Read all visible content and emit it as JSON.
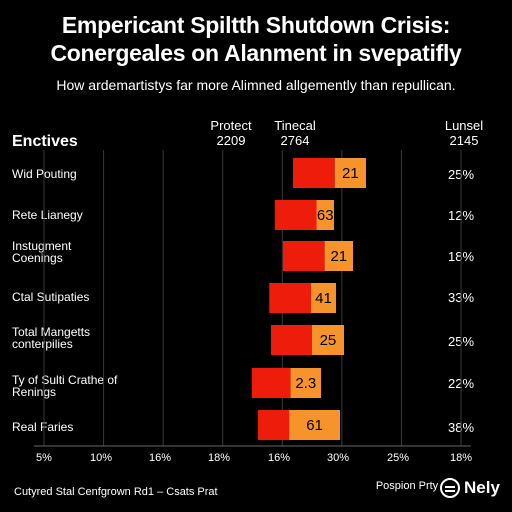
{
  "header": {
    "title_line1": "Empericant Spiltth Shutdown Crisis:",
    "title_line2": "Conergeales on Alanment in svepatifly",
    "subtitle": "How ardemartistys far more Alimned allgemently than repullican."
  },
  "columns": {
    "left_header": "Enctives",
    "col1_name": "Protect",
    "col1_value": "2209",
    "col2_name": "Tinecal",
    "col2_value": "2764",
    "col3_name": "Lunsel",
    "col3_value": "2145"
  },
  "colors": {
    "series1": "#ee1c0a",
    "series2": "#f7932b",
    "background": "#000000"
  },
  "chart_data": {
    "type": "bar",
    "orientation": "horizontal",
    "stacked": true,
    "categories": [
      "Wid Pouting",
      "Rete Lianegy",
      "Instugment Coenings",
      "Ctal Sutipaties",
      "Total Mangetts conterpilies",
      "Ty of Sulti Crathe of Renings",
      "Real Faries"
    ],
    "series": [
      {
        "values": [
          10,
          10,
          10,
          10,
          9.8,
          9.3,
          7.5
        ]
      },
      {
        "values": [
          7.5,
          4.2,
          6.8,
          6.0,
          7.7,
          7.3,
          12.2
        ]
      }
    ],
    "data_labels": [
      "21",
      "63",
      "21",
      "41",
      "25",
      "2.3",
      "61"
    ],
    "right_values": [
      "25%",
      "12%",
      "18%",
      "33%",
      "25%",
      "22%",
      "38%"
    ],
    "xlim": [
      0,
      100
    ],
    "x_tick_labels": [
      "5%",
      "10%",
      "16%",
      "18%",
      "16%",
      "30%",
      "25%",
      "18%"
    ],
    "grid": "vertical"
  },
  "footer": {
    "source": "Cutyred Stal Cenfgrown Rd1 – Csats Prat",
    "credit": "Pospion Prty",
    "logo_text": "Nely"
  }
}
